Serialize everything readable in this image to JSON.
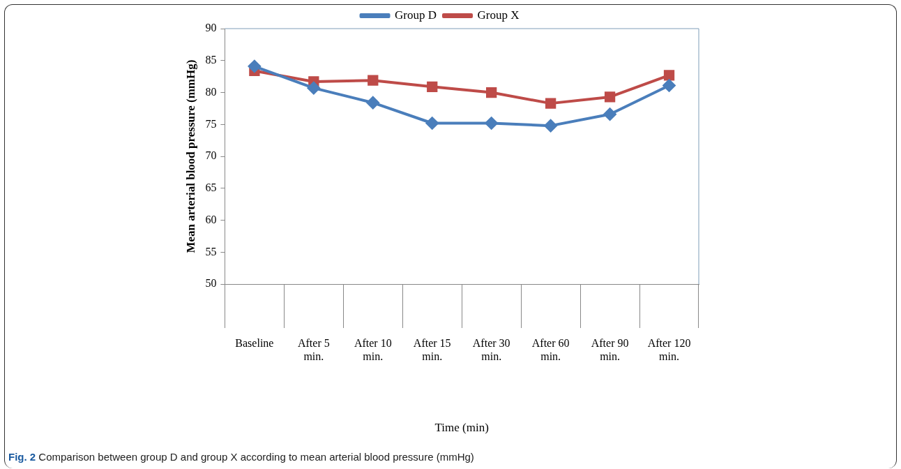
{
  "chart_data": {
    "type": "line",
    "xlabel": "Time (min)",
    "ylabel": "Mean arterial blood pressure (mmHg)",
    "categories": [
      "Baseline",
      "After 5 min.",
      "After 10 min.",
      "After 15 min.",
      "After 30 min.",
      "After 60 min.",
      "After 90 min.",
      "After 120 min."
    ],
    "series": [
      {
        "name": "Group D",
        "color": "#4a7ebb",
        "marker": "diamond",
        "values": [
          84.1,
          80.7,
          78.4,
          75.2,
          75.2,
          74.8,
          76.6,
          81.1
        ]
      },
      {
        "name": "Group X",
        "color": "#be4b48",
        "marker": "square",
        "values": [
          83.4,
          81.7,
          81.9,
          80.9,
          80.0,
          78.3,
          79.3,
          82.7
        ]
      }
    ],
    "ylim": [
      50,
      90
    ],
    "yticks": [
      50,
      55,
      60,
      65,
      70,
      75,
      80,
      85,
      90
    ],
    "grid": false,
    "legend": "top",
    "line_style": "solid",
    "annotations": [
      "Fig. 2 Comparison between group D and group X according to mean arterial blood pressure (mmHg)"
    ]
  }
}
